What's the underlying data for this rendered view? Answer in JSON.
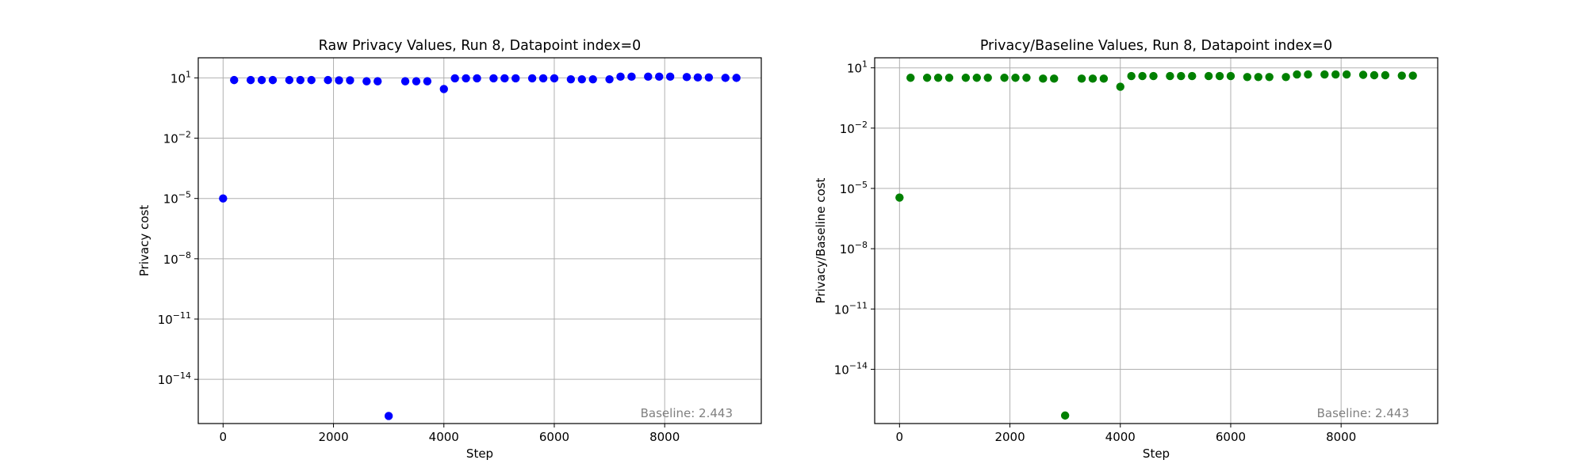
{
  "chart_data": [
    {
      "type": "scatter",
      "title": "Raw Privacy Values, Run 8, Datapoint index=0",
      "xlabel": "Step",
      "ylabel": "Privacy cost",
      "yscale": "log",
      "xlim": [
        -450,
        9750
      ],
      "ylim_exp": [
        -16.2,
        2.0
      ],
      "xticks": [
        0,
        2000,
        4000,
        6000,
        8000
      ],
      "xtick_labels": [
        "0",
        "2000",
        "4000",
        "6000",
        "8000"
      ],
      "yticks_exp": [
        1,
        -2,
        -5,
        -8,
        -11,
        -14
      ],
      "ytick_labels": [
        "10",
        "10",
        "10",
        "10",
        "10",
        "10"
      ],
      "ytick_exponents": [
        "1",
        "−2",
        "−5",
        "−8",
        "−11",
        "−14"
      ],
      "grid": true,
      "color": "#0000ff",
      "annotation": "Baseline: 2.443",
      "annotation_position": "bottom-right",
      "points": [
        {
          "x": 0,
          "y": 1e-05
        },
        {
          "x": 200,
          "y": 7.8
        },
        {
          "x": 500,
          "y": 7.8
        },
        {
          "x": 700,
          "y": 7.8
        },
        {
          "x": 900,
          "y": 7.8
        },
        {
          "x": 1200,
          "y": 7.8
        },
        {
          "x": 1400,
          "y": 7.8
        },
        {
          "x": 1600,
          "y": 7.8
        },
        {
          "x": 1900,
          "y": 7.8
        },
        {
          "x": 2100,
          "y": 7.6
        },
        {
          "x": 2300,
          "y": 7.6
        },
        {
          "x": 2600,
          "y": 6.8
        },
        {
          "x": 2800,
          "y": 6.8
        },
        {
          "x": 3000,
          "y": 1.5e-16
        },
        {
          "x": 3300,
          "y": 6.8
        },
        {
          "x": 3500,
          "y": 6.8
        },
        {
          "x": 3700,
          "y": 6.8
        },
        {
          "x": 4000,
          "y": 2.8
        },
        {
          "x": 4200,
          "y": 9.5
        },
        {
          "x": 4400,
          "y": 9.5
        },
        {
          "x": 4600,
          "y": 9.5
        },
        {
          "x": 4900,
          "y": 9.5
        },
        {
          "x": 5100,
          "y": 9.5
        },
        {
          "x": 5300,
          "y": 9.5
        },
        {
          "x": 5600,
          "y": 9.5
        },
        {
          "x": 5800,
          "y": 9.5
        },
        {
          "x": 6000,
          "y": 9.5
        },
        {
          "x": 6300,
          "y": 8.5
        },
        {
          "x": 6500,
          "y": 8.5
        },
        {
          "x": 6700,
          "y": 8.5
        },
        {
          "x": 7000,
          "y": 8.5
        },
        {
          "x": 7200,
          "y": 11.5
        },
        {
          "x": 7400,
          "y": 11.5
        },
        {
          "x": 7700,
          "y": 11.5
        },
        {
          "x": 7900,
          "y": 11.5
        },
        {
          "x": 8100,
          "y": 11.5
        },
        {
          "x": 8400,
          "y": 11.0
        },
        {
          "x": 8600,
          "y": 10.5
        },
        {
          "x": 8800,
          "y": 10.5
        },
        {
          "x": 9100,
          "y": 10.0
        },
        {
          "x": 9300,
          "y": 10.0
        }
      ]
    },
    {
      "type": "scatter",
      "title": "Privacy/Baseline Values, Run 8, Datapoint index=0",
      "xlabel": "Step",
      "ylabel": "Privacy/Baseline cost",
      "yscale": "log",
      "xlim": [
        -450,
        9750
      ],
      "ylim_exp": [
        -16.7,
        1.5
      ],
      "xticks": [
        0,
        2000,
        4000,
        6000,
        8000
      ],
      "xtick_labels": [
        "0",
        "2000",
        "4000",
        "6000",
        "8000"
      ],
      "yticks_exp": [
        1,
        -2,
        -5,
        -8,
        -11,
        -14
      ],
      "ytick_labels": [
        "10",
        "10",
        "10",
        "10",
        "10",
        "10"
      ],
      "ytick_exponents": [
        "1",
        "−2",
        "−5",
        "−8",
        "−11",
        "−14"
      ],
      "grid": true,
      "color": "#008000",
      "annotation": "Baseline: 2.443",
      "annotation_position": "bottom-right",
      "points": [
        {
          "x": 0,
          "y": 3.5e-06
        },
        {
          "x": 200,
          "y": 3.2
        },
        {
          "x": 500,
          "y": 3.2
        },
        {
          "x": 700,
          "y": 3.2
        },
        {
          "x": 900,
          "y": 3.2
        },
        {
          "x": 1200,
          "y": 3.2
        },
        {
          "x": 1400,
          "y": 3.2
        },
        {
          "x": 1600,
          "y": 3.2
        },
        {
          "x": 1900,
          "y": 3.2
        },
        {
          "x": 2100,
          "y": 3.2
        },
        {
          "x": 2300,
          "y": 3.2
        },
        {
          "x": 2600,
          "y": 2.9
        },
        {
          "x": 2800,
          "y": 2.9
        },
        {
          "x": 3000,
          "y": 5e-17
        },
        {
          "x": 3300,
          "y": 2.9
        },
        {
          "x": 3500,
          "y": 2.9
        },
        {
          "x": 3700,
          "y": 2.9
        },
        {
          "x": 4000,
          "y": 1.15
        },
        {
          "x": 4200,
          "y": 3.9
        },
        {
          "x": 4400,
          "y": 3.9
        },
        {
          "x": 4600,
          "y": 3.9
        },
        {
          "x": 4900,
          "y": 3.9
        },
        {
          "x": 5100,
          "y": 3.9
        },
        {
          "x": 5300,
          "y": 3.9
        },
        {
          "x": 5600,
          "y": 3.9
        },
        {
          "x": 5800,
          "y": 3.9
        },
        {
          "x": 6000,
          "y": 3.9
        },
        {
          "x": 6300,
          "y": 3.5
        },
        {
          "x": 6500,
          "y": 3.5
        },
        {
          "x": 6700,
          "y": 3.5
        },
        {
          "x": 7000,
          "y": 3.5
        },
        {
          "x": 7200,
          "y": 4.7
        },
        {
          "x": 7400,
          "y": 4.7
        },
        {
          "x": 7700,
          "y": 4.7
        },
        {
          "x": 7900,
          "y": 4.7
        },
        {
          "x": 8100,
          "y": 4.7
        },
        {
          "x": 8400,
          "y": 4.5
        },
        {
          "x": 8600,
          "y": 4.3
        },
        {
          "x": 8800,
          "y": 4.3
        },
        {
          "x": 9100,
          "y": 4.1
        },
        {
          "x": 9300,
          "y": 4.1
        }
      ]
    }
  ]
}
